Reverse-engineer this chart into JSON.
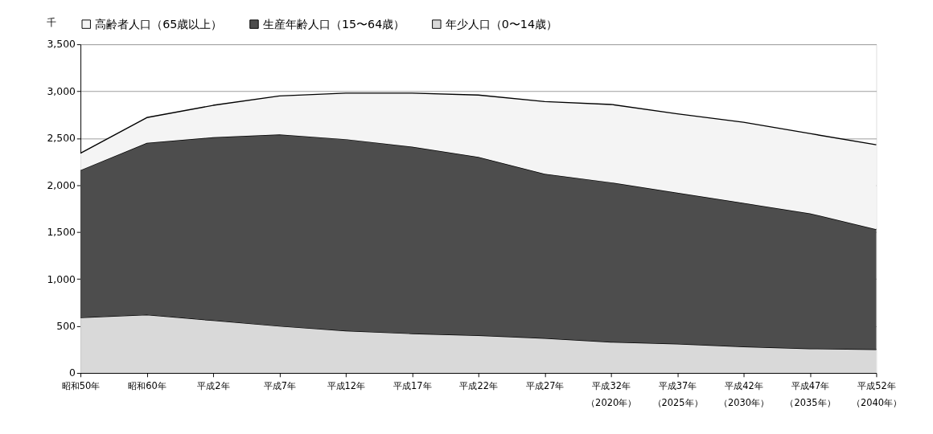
{
  "chart_data": {
    "type": "area",
    "stacked": true,
    "ylabel": "千",
    "categories": [
      "昭和50年",
      "昭和60年",
      "平成2年",
      "平成7年",
      "平成12年",
      "平成17年",
      "平成22年",
      "平成27年",
      "平成32年（2020年）",
      "平成37年（2025年）",
      "平成42年（2030年）",
      "平成47年（2035年）",
      "平成52年（2040年）"
    ],
    "series": [
      {
        "name": "年少人口（0〜14歳）",
        "color": "#d9d9d9",
        "values": [
          590,
          620,
          560,
          500,
          450,
          420,
          400,
          370,
          330,
          310,
          280,
          260,
          250
        ]
      },
      {
        "name": "生産年齢人口（15〜64歳）",
        "color": "#4d4d4d",
        "values": [
          1570,
          1830,
          1950,
          2040,
          2040,
          1990,
          1900,
          1750,
          1700,
          1610,
          1530,
          1440,
          1280
        ]
      },
      {
        "name": "高齢者人口（65歳以上）",
        "color": "#f4f4f4",
        "values": [
          180,
          270,
          340,
          410,
          490,
          570,
          660,
          770,
          830,
          840,
          860,
          850,
          900
        ]
      }
    ],
    "ylim": [
      0,
      3500
    ],
    "yticks": [
      0,
      500,
      {
        "value": 1000,
        "label": "1,000"
      },
      {
        "value": 1500,
        "label": "1,500"
      },
      {
        "value": 2000,
        "label": "2,000"
      },
      {
        "value": 2500,
        "label": "2,500"
      },
      {
        "value": 3000,
        "label": "3,000"
      },
      {
        "value": 3500,
        "label": "3,500"
      }
    ],
    "grid": "y",
    "legend": "top"
  }
}
